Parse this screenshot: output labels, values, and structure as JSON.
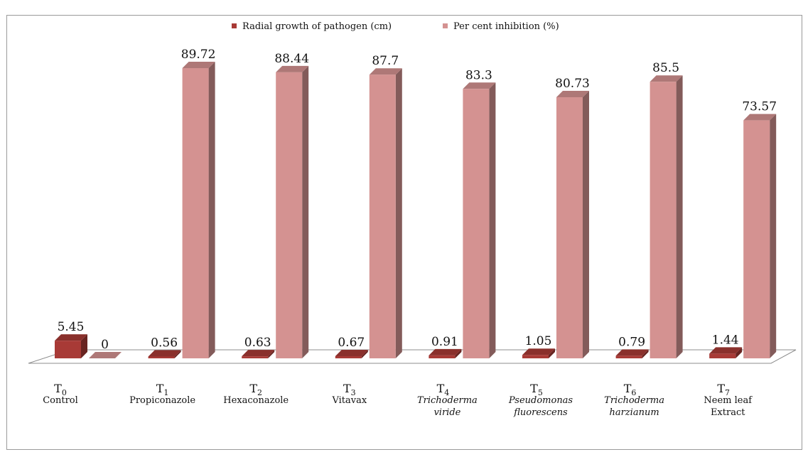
{
  "chart_data": {
    "type": "bar",
    "title": "",
    "xlabel": "",
    "ylabel": "",
    "ylim": [
      0,
      100
    ],
    "grid": false,
    "legend_position": "top",
    "categories": [
      {
        "code": "T",
        "sub": "0",
        "name": [
          "Control"
        ],
        "italic": false
      },
      {
        "code": "T",
        "sub": "1",
        "name": [
          "Propiconazole"
        ],
        "italic": false
      },
      {
        "code": "T",
        "sub": "2",
        "name": [
          "Hexaconazole"
        ],
        "italic": false
      },
      {
        "code": "T",
        "sub": "3",
        "name": [
          "Vitavax"
        ],
        "italic": false
      },
      {
        "code": "T",
        "sub": "4",
        "name": [
          "Trichoderma",
          "viride"
        ],
        "italic": true
      },
      {
        "code": "T",
        "sub": "5",
        "name": [
          "Pseudomonas",
          "fluorescens"
        ],
        "italic": true
      },
      {
        "code": "T",
        "sub": "6",
        "name": [
          "Trichoderma",
          "harzianum"
        ],
        "italic": true
      },
      {
        "code": "T",
        "sub": "7",
        "name": [
          "Neem leaf",
          "Extract"
        ],
        "italic": false
      }
    ],
    "series": [
      {
        "name": "Radial growth of  pathogen  (cm)",
        "color": "#a83a36",
        "values": [
          5.45,
          0.56,
          0.63,
          0.67,
          0.91,
          1.05,
          0.79,
          1.44
        ],
        "labels": [
          "5.45",
          "0.56",
          "0.63",
          "0.67",
          "0.91",
          "1.05",
          "0.79",
          "1.44"
        ]
      },
      {
        "name": "Per cent inhibition (%)",
        "color": "#d49291",
        "values": [
          0,
          89.72,
          88.44,
          87.7,
          83.3,
          80.73,
          85.5,
          73.57
        ],
        "labels": [
          "0",
          "89.72",
          "88.44",
          "87.7",
          "83.3",
          "80.73",
          "85.5",
          "73.57"
        ]
      }
    ]
  }
}
